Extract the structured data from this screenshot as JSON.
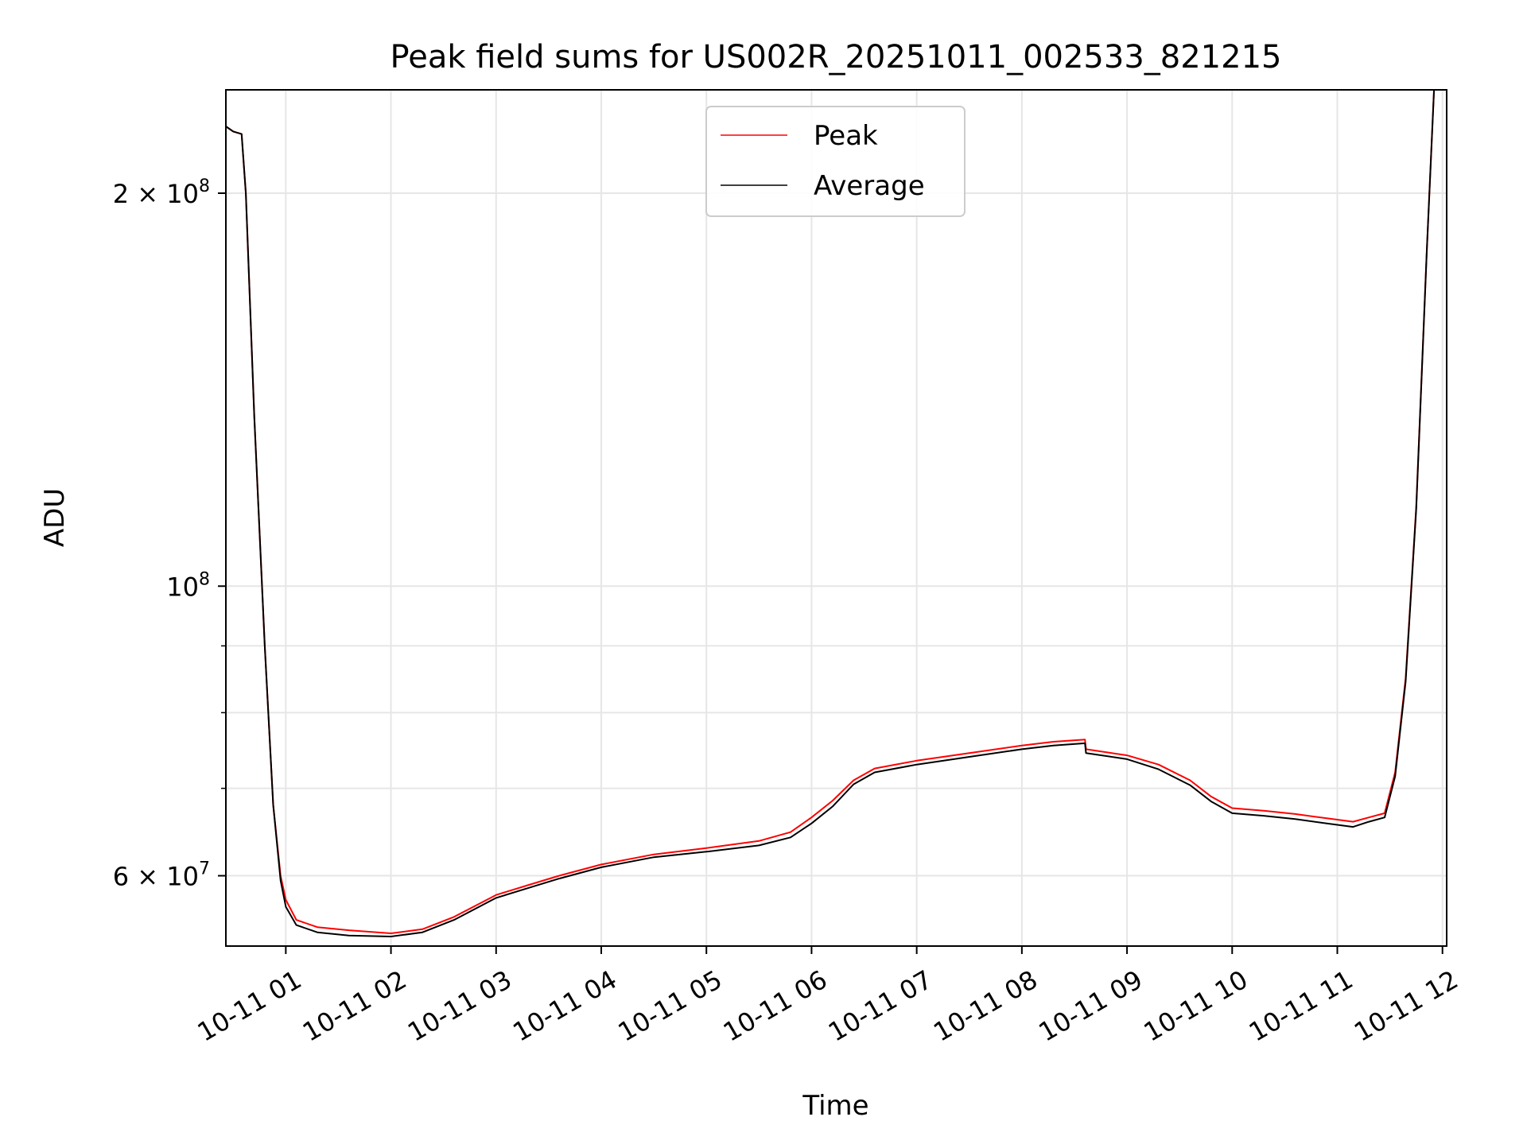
{
  "chart_data": {
    "type": "line",
    "title": "Peak field sums for US002R_20251011_002533_821215",
    "xlabel": "Time",
    "ylabel": "ADU",
    "yscale": "log",
    "ylim": [
      53000000,
      240000000
    ],
    "xlim_hours": [
      0.43,
      12.04
    ],
    "grid": true,
    "legend_position": "upper-center",
    "colors": {
      "peak": "#ff0000",
      "average": "#000000",
      "grid": "#e6e6e6",
      "axes": "#000000"
    },
    "x_ticks": [
      {
        "label": "10-11 01",
        "hour": 1
      },
      {
        "label": "10-11 02",
        "hour": 2
      },
      {
        "label": "10-11 03",
        "hour": 3
      },
      {
        "label": "10-11 04",
        "hour": 4
      },
      {
        "label": "10-11 05",
        "hour": 5
      },
      {
        "label": "10-11 06",
        "hour": 6
      },
      {
        "label": "10-11 07",
        "hour": 7
      },
      {
        "label": "10-11 08",
        "hour": 8
      },
      {
        "label": "10-11 09",
        "hour": 9
      },
      {
        "label": "10-11 10",
        "hour": 10
      },
      {
        "label": "10-11 11",
        "hour": 11
      },
      {
        "label": "10-11 12",
        "hour": 12
      }
    ],
    "y_major_ticks": [
      {
        "label_base": "6 × 10",
        "label_exp": "7",
        "value": 60000000
      },
      {
        "label_base": "10",
        "label_exp": "8",
        "value": 100000000
      },
      {
        "label_base": "2 × 10",
        "label_exp": "8",
        "value": 200000000
      }
    ],
    "y_minor_ticks": [
      70000000,
      80000000,
      90000000
    ],
    "series": [
      {
        "name": "Peak",
        "x_hours": [
          0.43,
          0.5,
          0.58,
          0.62,
          0.7,
          0.8,
          0.88,
          0.95,
          1.0,
          1.1,
          1.3,
          1.6,
          2.0,
          2.3,
          2.6,
          3.0,
          3.3,
          3.6,
          4.0,
          4.5,
          5.0,
          5.5,
          5.8,
          6.0,
          6.2,
          6.4,
          6.6,
          7.0,
          7.5,
          8.0,
          8.3,
          8.6,
          8.61,
          9.0,
          9.3,
          9.6,
          9.8,
          10.0,
          10.3,
          10.6,
          10.9,
          11.15,
          11.3,
          11.45,
          11.55,
          11.65,
          11.75,
          11.85,
          11.92
        ],
        "values": [
          225000000,
          223000000,
          222000000,
          200000000,
          135000000,
          90000000,
          68000000,
          60000000,
          57500000,
          55500000,
          54800000,
          54500000,
          54200000,
          54600000,
          55800000,
          58000000,
          59000000,
          60000000,
          61200000,
          62300000,
          63000000,
          63800000,
          64800000,
          66500000,
          68500000,
          71000000,
          72500000,
          73500000,
          74500000,
          75500000,
          76000000,
          76300000,
          75000000,
          74200000,
          73000000,
          71000000,
          69000000,
          67600000,
          67300000,
          66900000,
          66400000,
          66000000,
          66500000,
          67000000,
          72000000,
          85000000,
          115000000,
          180000000,
          240000000
        ]
      },
      {
        "name": "Average",
        "x_hours": [
          0.43,
          0.5,
          0.58,
          0.62,
          0.7,
          0.8,
          0.88,
          0.95,
          1.0,
          1.1,
          1.3,
          1.6,
          2.0,
          2.3,
          2.6,
          3.0,
          3.3,
          3.6,
          4.0,
          4.5,
          5.0,
          5.5,
          5.8,
          6.0,
          6.2,
          6.4,
          6.6,
          7.0,
          7.5,
          8.0,
          8.3,
          8.6,
          8.61,
          9.0,
          9.3,
          9.6,
          9.8,
          10.0,
          10.3,
          10.6,
          10.9,
          11.15,
          11.3,
          11.45,
          11.55,
          11.65,
          11.75,
          11.85,
          11.92
        ],
        "values": [
          225000000,
          223000000,
          222000000,
          200000000,
          135000000,
          90000000,
          68000000,
          59500000,
          56800000,
          55000000,
          54300000,
          54000000,
          53900000,
          54300000,
          55500000,
          57700000,
          58700000,
          59700000,
          60900000,
          62000000,
          62600000,
          63300000,
          64200000,
          65800000,
          67800000,
          70500000,
          72000000,
          73000000,
          74000000,
          75000000,
          75500000,
          75800000,
          74500000,
          73700000,
          72400000,
          70400000,
          68400000,
          67000000,
          66700000,
          66300000,
          65800000,
          65400000,
          66000000,
          66500000,
          71500000,
          84500000,
          114500000,
          180000000,
          240000000
        ]
      }
    ]
  }
}
